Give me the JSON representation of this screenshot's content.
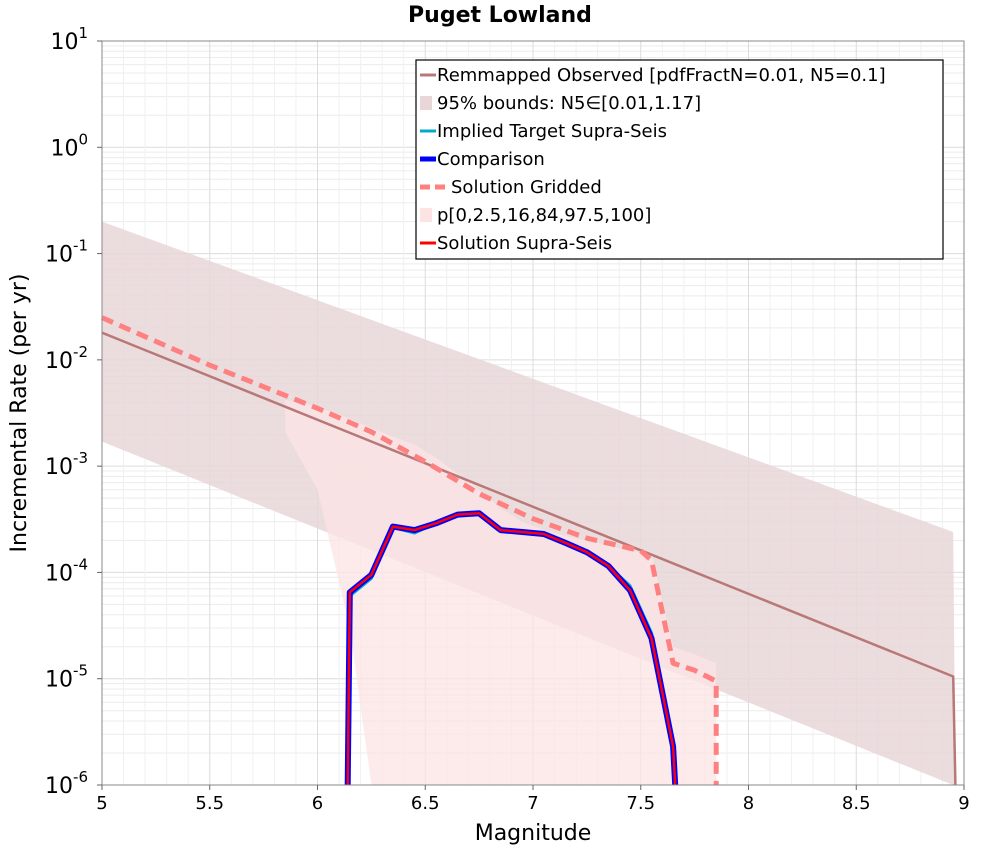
{
  "chart_data": {
    "type": "line",
    "title": "Puget Lowland",
    "xlabel": "Magnitude",
    "ylabel": "Incremental Rate (per yr)",
    "xlim": [
      5,
      9
    ],
    "ylim_log10": [
      -6,
      1
    ],
    "y_scale": "log",
    "grid": true,
    "legend_position": "top-right",
    "x_ticks": [
      "5",
      "5.5",
      "6",
      "6.5",
      "7",
      "7.5",
      "8",
      "8.5",
      "9"
    ],
    "x_tick_values": [
      5,
      5.5,
      6,
      6.5,
      7,
      7.5,
      8,
      8.5,
      9
    ],
    "y_tick_base": "10",
    "y_tick_exponents": [
      "1",
      "0",
      "-1",
      "-2",
      "-3",
      "-4",
      "-5",
      "-6"
    ],
    "colors": {
      "remapped": "#b87878",
      "bounds95": "#e8d6d8",
      "implied": "#00aacc",
      "comparison": "#0000ff",
      "gridded": "#ff8080",
      "percentiles": "#fce4e4",
      "supra": "#ff0000"
    },
    "legend": [
      {
        "key": "remapped",
        "label": "Remmapped Observed [pdfFractN=0.01, N5=0.1]",
        "style": "line"
      },
      {
        "key": "bounds95",
        "label": "95% bounds: N5∈[0.01,1.17]",
        "style": "band"
      },
      {
        "key": "implied",
        "label": "Implied Target Supra-Seis",
        "style": "line"
      },
      {
        "key": "comparison",
        "label": "Comparison",
        "style": "thick"
      },
      {
        "key": "gridded",
        "label": "Solution Gridded",
        "style": "dash"
      },
      {
        "key": "percentiles",
        "label": "p[0,2.5,16,84,97.5,100]",
        "style": "band"
      },
      {
        "key": "supra",
        "label": "Solution Supra-Seis",
        "style": "line"
      }
    ],
    "series": [
      {
        "name": "Remmapped Observed",
        "key": "remapped",
        "x": [
          5.0,
          8.95,
          8.96
        ],
        "y": [
          0.018,
          1.05e-05,
          1e-06
        ]
      },
      {
        "name": "95% bounds",
        "key": "bounds95",
        "x": [
          5.0,
          8.95,
          8.96
        ],
        "lower": [
          0.0017,
          1e-06,
          1e-06
        ],
        "upper": [
          0.2,
          0.00024,
          1e-06
        ]
      },
      {
        "name": "Solution Gridded",
        "key": "gridded",
        "x": [
          5.0,
          5.5,
          6.0,
          6.25,
          6.5,
          6.75,
          7.0,
          7.25,
          7.5,
          7.55,
          7.65,
          7.75,
          7.85,
          7.85
        ],
        "y": [
          0.025,
          0.0089,
          0.0035,
          0.0021,
          0.0011,
          0.00055,
          0.00032,
          0.00021,
          0.00016,
          0.00013,
          1.4e-05,
          1.2e-05,
          9.5e-06,
          1e-06
        ]
      },
      {
        "name": "p[0,2.5,16,84,97.5,100]",
        "key": "percentiles",
        "x": [
          5.85,
          6.0,
          6.15,
          6.25,
          6.35,
          6.45,
          6.55,
          6.65,
          6.75,
          6.85,
          6.95,
          7.05,
          7.15,
          7.25,
          7.35,
          7.45,
          7.55,
          7.65,
          7.75,
          7.85
        ],
        "lower": [
          0.0021,
          0.0006,
          3e-05,
          1e-06,
          1e-06,
          1e-06,
          1e-06,
          1e-06,
          1e-06,
          1e-06,
          1e-06,
          1e-06,
          1e-06,
          1e-06,
          1e-06,
          1e-06,
          1e-06,
          1e-06,
          1e-06,
          1e-06
        ],
        "upper": [
          0.0042,
          0.0036,
          0.0028,
          0.0023,
          0.0019,
          0.0016,
          0.0012,
          0.00085,
          0.0006,
          0.0004,
          0.0003,
          0.00025,
          0.00022,
          0.0002,
          0.00018,
          0.00016,
          0.00015,
          2e-05,
          1.7e-05,
          1.4e-05
        ]
      },
      {
        "name": "Implied Target Supra-Seis",
        "key": "implied",
        "x": [
          6.14,
          6.15,
          6.25,
          6.35,
          6.45,
          6.55,
          6.65,
          6.75,
          6.85,
          6.95,
          7.05,
          7.15,
          7.25,
          7.35,
          7.45,
          7.55,
          7.65,
          7.66
        ],
        "y": [
          1e-06,
          6e-05,
          8.8e-05,
          0.000265,
          0.000235,
          0.00029,
          0.00035,
          0.000355,
          0.00025,
          0.00024,
          0.00023,
          0.00019,
          0.000152,
          0.000115,
          7.5e-05,
          2.7e-05,
          2.3e-06,
          1e-06
        ]
      },
      {
        "name": "Comparison",
        "key": "comparison",
        "x": [
          6.14,
          6.15,
          6.25,
          6.35,
          6.45,
          6.55,
          6.65,
          6.75,
          6.85,
          6.95,
          7.05,
          7.15,
          7.25,
          7.35,
          7.45,
          7.55,
          7.65,
          7.66
        ],
        "y": [
          1e-06,
          6.5e-05,
          9.5e-05,
          0.00027,
          0.00025,
          0.00029,
          0.00035,
          0.00036,
          0.00025,
          0.00024,
          0.00023,
          0.00019,
          0.000155,
          0.000115,
          6.8e-05,
          2.4e-05,
          2.3e-06,
          1e-06
        ]
      },
      {
        "name": "Solution Supra-Seis",
        "key": "supra",
        "x": [
          6.14,
          6.15,
          6.25,
          6.35,
          6.45,
          6.55,
          6.65,
          6.75,
          6.85,
          6.95,
          7.05,
          7.15,
          7.25,
          7.35,
          7.45,
          7.55,
          7.65,
          7.66
        ],
        "y": [
          1e-06,
          6.5e-05,
          9.5e-05,
          0.00027,
          0.00025,
          0.00029,
          0.00035,
          0.00036,
          0.00025,
          0.00024,
          0.00023,
          0.00019,
          0.000155,
          0.000115,
          6.8e-05,
          2.4e-05,
          2.3e-06,
          1e-06
        ]
      }
    ]
  }
}
